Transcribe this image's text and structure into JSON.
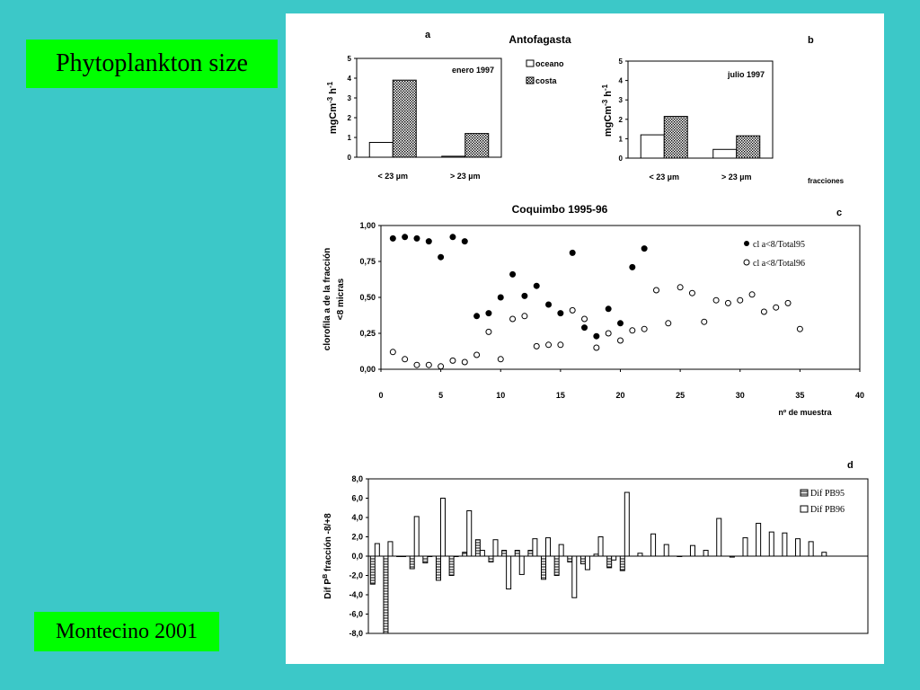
{
  "slide": {
    "title": "Phytoplankton size",
    "author": "Montecino 2001",
    "accent": "#00ff00",
    "background": "#3cc8c8"
  },
  "chart_data": [
    {
      "id": "a",
      "type": "bar",
      "panel_letter": "a",
      "title": "Antofagasta",
      "subtitle": "enero 1997",
      "ylabel": "mgCm-3 h-1",
      "xlabel": "",
      "ylim": [
        0,
        5
      ],
      "yticks": [
        "0",
        "1",
        "2",
        "3",
        "4",
        "5"
      ],
      "categories": [
        "< 23  µm",
        "> 23 µm"
      ],
      "series": [
        {
          "name": "oceano",
          "values": [
            0.75,
            0.05
          ]
        },
        {
          "name": "costa",
          "values": [
            3.9,
            1.2
          ]
        }
      ],
      "legend_position": "right"
    },
    {
      "id": "b",
      "type": "bar",
      "panel_letter": "b",
      "title": "",
      "subtitle": "julio 1997",
      "ylabel": "mgCm-3 h-1",
      "xlabel": "fracciones",
      "ylim": [
        0,
        5
      ],
      "yticks": [
        "0",
        "1",
        "2",
        "3",
        "4",
        "5"
      ],
      "categories": [
        "< 23  µm",
        "> 23 µm"
      ],
      "series": [
        {
          "name": "oceano",
          "values": [
            1.2,
            0.45
          ]
        },
        {
          "name": "costa",
          "values": [
            2.15,
            1.15
          ]
        }
      ]
    },
    {
      "id": "c",
      "type": "scatter",
      "panel_letter": "c",
      "title": "Coquimbo 1995-96",
      "xlabel": "nº de muestra",
      "ylabel": "clorofila a de la fracción <8 micras",
      "xlim": [
        0,
        40
      ],
      "ylim": [
        0,
        1
      ],
      "xticks": [
        "0",
        "5",
        "10",
        "15",
        "20",
        "25",
        "30",
        "35",
        "40"
      ],
      "yticks": [
        "0,00",
        "0,25",
        "0,50",
        "0,75",
        "1,00"
      ],
      "legend_position": "top-right",
      "series": [
        {
          "name": "cl a<8/Total95",
          "marker": "filled",
          "x": [
            1,
            2,
            3,
            4,
            5,
            6,
            7,
            8,
            9,
            10,
            11,
            12,
            13,
            14,
            15,
            16,
            17,
            18,
            19,
            20,
            21,
            22
          ],
          "y": [
            0.91,
            0.92,
            0.91,
            0.89,
            0.78,
            0.92,
            0.89,
            0.37,
            0.39,
            0.5,
            0.66,
            0.51,
            0.58,
            0.45,
            0.39,
            0.81,
            0.29,
            0.23,
            0.42,
            0.32,
            0.71,
            0.84
          ]
        },
        {
          "name": "cl a<8/Total96",
          "marker": "open",
          "x": [
            1,
            2,
            3,
            4,
            5,
            6,
            7,
            8,
            9,
            10,
            11,
            12,
            13,
            14,
            15,
            16,
            17,
            18,
            19,
            20,
            21,
            22,
            23,
            24,
            25,
            26,
            27,
            28,
            29,
            30,
            31,
            32,
            33,
            34,
            35
          ],
          "y": [
            0.12,
            0.07,
            0.03,
            0.03,
            0.02,
            0.06,
            0.05,
            0.1,
            0.26,
            0.07,
            0.35,
            0.37,
            0.16,
            0.17,
            0.17,
            0.41,
            0.35,
            0.15,
            0.25,
            0.2,
            0.27,
            0.28,
            0.55,
            0.32,
            0.57,
            0.53,
            0.33,
            0.48,
            0.46,
            0.48,
            0.52,
            0.4,
            0.43,
            0.46,
            0.28
          ]
        }
      ]
    },
    {
      "id": "d",
      "type": "bar",
      "panel_letter": "d",
      "title": "",
      "xlabel": "",
      "ylabel": "Dif PB fracción -8/+8",
      "ylim": [
        -8,
        8
      ],
      "yticks": [
        "8,0",
        "6,0",
        "4,0",
        "2,0",
        "0,0",
        "-2,0",
        "-4,0",
        "-6,0",
        "-8,0"
      ],
      "legend_position": "top-right",
      "n_groups": 38,
      "series": [
        {
          "name": "Dif PB95",
          "pattern": "hatched",
          "values": [
            -2.9,
            -8.0,
            0.0,
            -1.3,
            -0.7,
            -2.5,
            -2.0,
            0.4,
            1.7,
            -0.6,
            0.6,
            0.6,
            0.6,
            -2.4,
            -2.0,
            -0.6,
            -0.8,
            0.2,
            -1.2,
            -1.5
          ]
        },
        {
          "name": "Dif PB96",
          "pattern": "open",
          "values": [
            1.3,
            1.5,
            0.0,
            4.1,
            0.0,
            6.0,
            0.0,
            4.7,
            0.6,
            1.7,
            -3.4,
            -1.9,
            1.8,
            1.9,
            1.2,
            -4.3,
            -1.4,
            2.0,
            -0.4,
            6.6,
            0.3,
            2.3,
            1.2,
            0.0,
            1.1,
            0.6,
            3.9,
            -0.1,
            1.9,
            3.4,
            2.5,
            2.4,
            1.8,
            1.5,
            0.4
          ]
        }
      ]
    }
  ]
}
